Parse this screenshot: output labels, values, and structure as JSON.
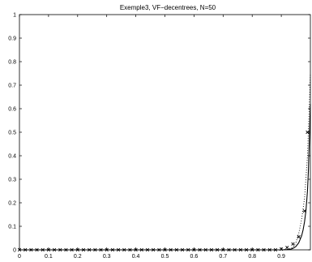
{
  "chart_data": {
    "type": "line",
    "title": "Exemple3, VF−decentrees, N=50",
    "xlabel": "",
    "ylabel": "",
    "xlim": [
      0,
      1
    ],
    "ylim": [
      0,
      1
    ],
    "x_ticks": [
      "0",
      "0.1",
      "0.2",
      "0.3",
      "0.4",
      "0.5",
      "0.6",
      "0.7",
      "0.8",
      "0.9"
    ],
    "y_ticks": [
      "0",
      "0.1",
      "0.2",
      "0.3",
      "0.4",
      "0.5",
      "0.6",
      "0.7",
      "0.8",
      "0.9",
      "1"
    ],
    "grid": false,
    "series": [
      {
        "style": "solid",
        "color": "#000000",
        "x": [
          0,
          0.5,
          0.9,
          0.92,
          0.93,
          0.94,
          0.95,
          0.96,
          0.97,
          0.975,
          0.98,
          0.985,
          0.99,
          0.993,
          0.996,
          1.0
        ],
        "y": [
          0,
          0,
          0,
          0.001,
          0.002,
          0.006,
          0.014,
          0.03,
          0.06,
          0.085,
          0.12,
          0.17,
          0.25,
          0.33,
          0.45,
          0.62
        ]
      },
      {
        "style": "dotted",
        "color": "#000000",
        "x": [
          0,
          0.5,
          0.9,
          0.92,
          0.94,
          0.95,
          0.96,
          0.97,
          0.98,
          0.99,
          1.0
        ],
        "y": [
          0,
          0,
          0,
          0.002,
          0.01,
          0.03,
          0.07,
          0.13,
          0.22,
          0.4,
          0.75
        ]
      },
      {
        "style": "markers",
        "marker": "x",
        "color": "#000000",
        "x": [
          0,
          0.02,
          0.04,
          0.06,
          0.08,
          0.1,
          0.12,
          0.14,
          0.16,
          0.18,
          0.2,
          0.22,
          0.24,
          0.26,
          0.28,
          0.3,
          0.32,
          0.34,
          0.36,
          0.38,
          0.4,
          0.42,
          0.44,
          0.46,
          0.48,
          0.5,
          0.52,
          0.54,
          0.56,
          0.58,
          0.6,
          0.62,
          0.64,
          0.66,
          0.68,
          0.7,
          0.72,
          0.74,
          0.76,
          0.78,
          0.8,
          0.82,
          0.84,
          0.86,
          0.88,
          0.9,
          0.92,
          0.94,
          0.96,
          0.98,
          0.99
        ],
        "y": [
          0,
          0,
          0,
          0,
          0,
          0,
          0,
          0,
          0,
          0,
          0,
          0,
          0,
          0,
          0,
          0,
          0,
          0,
          0,
          0,
          0,
          0,
          0,
          0,
          0,
          0,
          0,
          0,
          0,
          0,
          0,
          0,
          0,
          0,
          0,
          0,
          0,
          0,
          0,
          0,
          0,
          0,
          0,
          0,
          0,
          0.003,
          0.01,
          0.025,
          0.055,
          0.165,
          0.5
        ]
      }
    ]
  }
}
